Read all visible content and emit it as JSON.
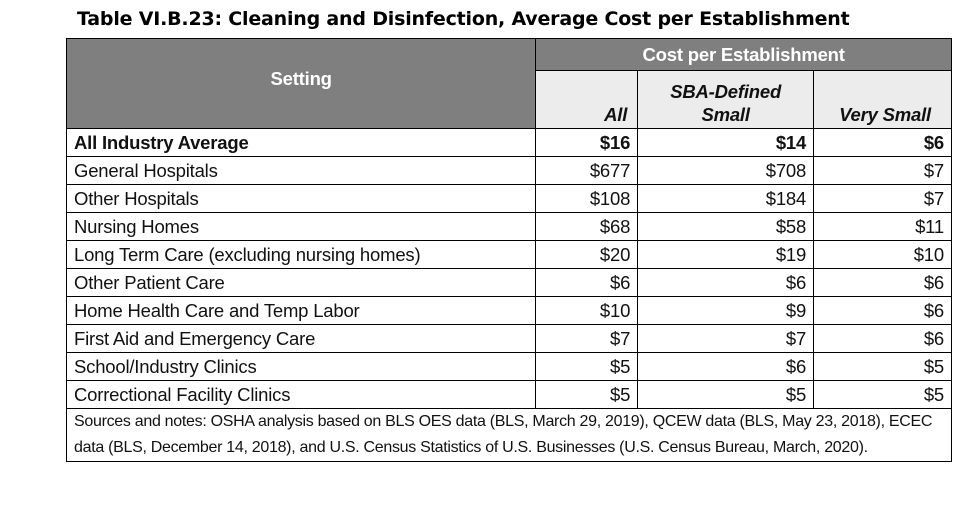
{
  "title": "Table VI.B.23: Cleaning and Disinfection, Average Cost per Establishment",
  "header": {
    "setting": "Setting",
    "cost_group": "Cost per Establishment",
    "col_all": "All",
    "col_sba": "SBA-Defined Small",
    "col_very_small": "Very Small"
  },
  "rows": [
    {
      "setting": "All Industry Average",
      "all": "$16",
      "sba": "$14",
      "very_small": "$6"
    },
    {
      "setting": "General Hospitals",
      "all": "$677",
      "sba": "$708",
      "very_small": "$7"
    },
    {
      "setting": "Other Hospitals",
      "all": "$108",
      "sba": "$184",
      "very_small": "$7"
    },
    {
      "setting": "Nursing Homes",
      "all": "$68",
      "sba": "$58",
      "very_small": "$11"
    },
    {
      "setting": "Long Term Care (excluding nursing homes)",
      "all": "$20",
      "sba": "$19",
      "very_small": "$10"
    },
    {
      "setting": "Other Patient Care",
      "all": "$6",
      "sba": "$6",
      "very_small": "$6"
    },
    {
      "setting": "Home Health Care and Temp Labor",
      "all": "$10",
      "sba": "$9",
      "very_small": "$6"
    },
    {
      "setting": "First Aid and Emergency Care",
      "all": "$7",
      "sba": "$7",
      "very_small": "$6"
    },
    {
      "setting": "School/Industry Clinics",
      "all": "$5",
      "sba": "$6",
      "very_small": "$5"
    },
    {
      "setting": "Correctional Facility Clinics",
      "all": "$5",
      "sba": "$5",
      "very_small": "$5"
    }
  ],
  "notes": "Sources and notes: OSHA analysis based on BLS OES data (BLS, March 29, 2019), QCEW data (BLS, May 23, 2018), ECEC data (BLS, December 14, 2018), and U.S. Census Statistics of U.S. Businesses (U.S. Census Bureau, March, 2020)."
}
